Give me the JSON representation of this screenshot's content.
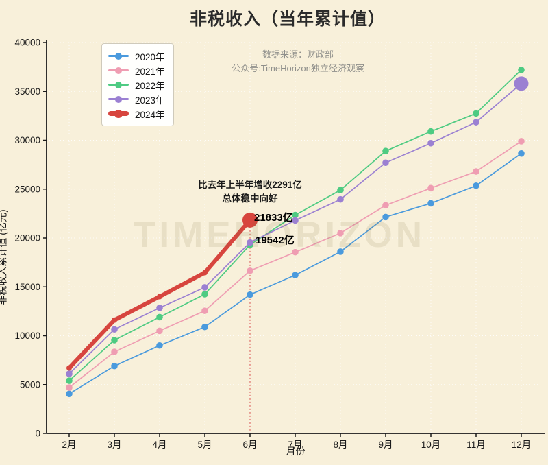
{
  "title": "非税收入（当年累计值）",
  "source": {
    "line1": "数据来源：财政部",
    "line2": "公众号:TimeHorizon独立经济观察"
  },
  "watermark": "TIMEHORIZON",
  "annotation": {
    "line1": "比去年上半年增收2291亿",
    "line2": "总体稳中向好",
    "label_2024_june": "21833亿",
    "label_2023_june": "19542亿"
  },
  "axes": {
    "ylabel": "非税收入累计值 (亿元)",
    "xlabel": "月份",
    "ymin": 0,
    "ymax": 40000,
    "ystep": 5000,
    "grid": "dotted-white",
    "legend_position": "upper-left"
  },
  "colors": {
    "background": "#f8f0da",
    "axis": "#1a1a1a",
    "grid": "#ffffff",
    "marker_line": "#e07d76",
    "series_2020": "#4a9add",
    "series_2021": "#ef9db2",
    "series_2022": "#4ecb82",
    "series_2023": "#9b80d2",
    "series_2024": "#d7453e"
  },
  "chart_data": {
    "type": "line",
    "title": "非税收入（当年累计值）",
    "xlabel": "月份",
    "ylabel": "非税收入累计值 (亿元)",
    "ylim": [
      0,
      40000
    ],
    "categories": [
      "2月",
      "3月",
      "4月",
      "5月",
      "6月",
      "7月",
      "8月",
      "9月",
      "10月",
      "11月",
      "12月"
    ],
    "series": [
      {
        "name": "2020年",
        "color": "#4a9add",
        "thick": false,
        "values": [
          4050,
          6900,
          9000,
          10900,
          14200,
          16200,
          18600,
          22150,
          23550,
          25350,
          28650
        ]
      },
      {
        "name": "2021年",
        "color": "#ef9db2",
        "thick": false,
        "values": [
          4700,
          8350,
          10500,
          12550,
          16650,
          18550,
          20500,
          23350,
          25100,
          26800,
          29900
        ]
      },
      {
        "name": "2022年",
        "color": "#4ecb82",
        "thick": false,
        "values": [
          5400,
          9550,
          11900,
          14250,
          19300,
          22350,
          24900,
          28900,
          30900,
          32750,
          37200
        ]
      },
      {
        "name": "2023年",
        "color": "#9b80d2",
        "thick": false,
        "end_dot_r": 10.5,
        "values": [
          6100,
          10650,
          12850,
          14950,
          19542,
          21800,
          23950,
          27700,
          29700,
          31850,
          35800
        ]
      },
      {
        "name": "2024年",
        "color": "#d7453e",
        "thick": true,
        "end_dot_r": 11,
        "values": [
          6700,
          11600,
          14000,
          16450,
          21833
        ]
      }
    ],
    "highlight": {
      "marker_month": "6月",
      "value_2024": 21833,
      "value_2023": 19542,
      "delta_text": "比去年上半年增收2291亿"
    }
  }
}
